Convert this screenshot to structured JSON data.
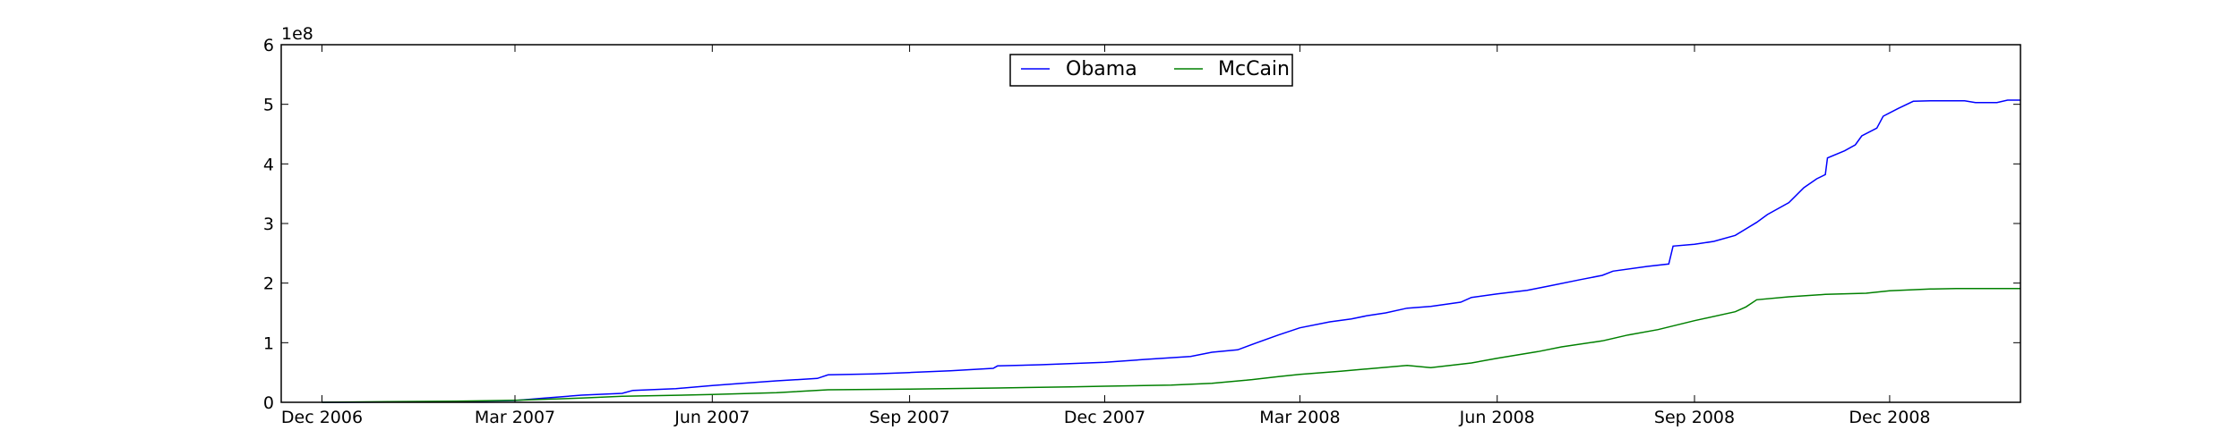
{
  "chart_data": {
    "type": "line",
    "title": "",
    "xlabel": "",
    "ylabel": "",
    "x_type": "date",
    "xlim": [
      "2006-11-12",
      "2009-01-31"
    ],
    "ylim": [
      0,
      600000000
    ],
    "y_offset_label": "1e8",
    "x_ticks": [
      {
        "date": "2006-12-01",
        "label": "Dec 2006"
      },
      {
        "date": "2007-03-01",
        "label": "Mar 2007"
      },
      {
        "date": "2007-06-01",
        "label": "Jun 2007"
      },
      {
        "date": "2007-09-01",
        "label": "Sep 2007"
      },
      {
        "date": "2007-12-01",
        "label": "Dec 2007"
      },
      {
        "date": "2008-03-01",
        "label": "Mar 2008"
      },
      {
        "date": "2008-06-01",
        "label": "Jun 2008"
      },
      {
        "date": "2008-09-01",
        "label": "Sep 2008"
      },
      {
        "date": "2008-12-01",
        "label": "Dec 2008"
      }
    ],
    "y_ticks": [
      {
        "value": 0,
        "label": "0"
      },
      {
        "value": 100000000,
        "label": "1"
      },
      {
        "value": 200000000,
        "label": "2"
      },
      {
        "value": 300000000,
        "label": "3"
      },
      {
        "value": 400000000,
        "label": "4"
      },
      {
        "value": 500000000,
        "label": "5"
      },
      {
        "value": 600000000,
        "label": "6"
      }
    ],
    "grid": false,
    "legend": {
      "placement": "top-center",
      "columns": 2
    },
    "series": [
      {
        "name": "Obama",
        "color": "#0000ff",
        "points": [
          [
            "2006-12-01",
            0
          ],
          [
            "2007-01-01",
            300000
          ],
          [
            "2007-02-01",
            1000000
          ],
          [
            "2007-03-01",
            3000000
          ],
          [
            "2007-03-15",
            7000000
          ],
          [
            "2007-04-01",
            12000000
          ],
          [
            "2007-04-20",
            15000000
          ],
          [
            "2007-04-25",
            20000000
          ],
          [
            "2007-05-15",
            23000000
          ],
          [
            "2007-06-01",
            28000000
          ],
          [
            "2007-06-15",
            32000000
          ],
          [
            "2007-07-01",
            36000000
          ],
          [
            "2007-07-20",
            40000000
          ],
          [
            "2007-07-25",
            46000000
          ],
          [
            "2007-08-15",
            47500000
          ],
          [
            "2007-09-01",
            50000000
          ],
          [
            "2007-09-20",
            53000000
          ],
          [
            "2007-10-10",
            57000000
          ],
          [
            "2007-10-12",
            61000000
          ],
          [
            "2007-11-01",
            63000000
          ],
          [
            "2007-12-01",
            67000000
          ],
          [
            "2007-12-20",
            72000000
          ],
          [
            "2008-01-10",
            77000000
          ],
          [
            "2008-01-20",
            84000000
          ],
          [
            "2008-02-01",
            88000000
          ],
          [
            "2008-02-10",
            100000000
          ],
          [
            "2008-02-20",
            113000000
          ],
          [
            "2008-03-01",
            125000000
          ],
          [
            "2008-03-15",
            135000000
          ],
          [
            "2008-03-25",
            140000000
          ],
          [
            "2008-04-01",
            145000000
          ],
          [
            "2008-04-10",
            150000000
          ],
          [
            "2008-04-20",
            158000000
          ],
          [
            "2008-05-01",
            161000000
          ],
          [
            "2008-05-15",
            168000000
          ],
          [
            "2008-05-20",
            176000000
          ],
          [
            "2008-06-01",
            182000000
          ],
          [
            "2008-06-15",
            188000000
          ],
          [
            "2008-06-25",
            195000000
          ],
          [
            "2008-07-10",
            206000000
          ],
          [
            "2008-07-20",
            213000000
          ],
          [
            "2008-07-25",
            220000000
          ],
          [
            "2008-08-10",
            228000000
          ],
          [
            "2008-08-20",
            232000000
          ],
          [
            "2008-08-22",
            262000000
          ],
          [
            "2008-09-01",
            265000000
          ],
          [
            "2008-09-10",
            270000000
          ],
          [
            "2008-09-20",
            280000000
          ],
          [
            "2008-09-30",
            302000000
          ],
          [
            "2008-10-05",
            315000000
          ],
          [
            "2008-10-15",
            335000000
          ],
          [
            "2008-10-22",
            360000000
          ],
          [
            "2008-10-28",
            375000000
          ],
          [
            "2008-11-01",
            382000000
          ],
          [
            "2008-11-02",
            410000000
          ],
          [
            "2008-11-10",
            422000000
          ],
          [
            "2008-11-15",
            432000000
          ],
          [
            "2008-11-18",
            447000000
          ],
          [
            "2008-11-25",
            460000000
          ],
          [
            "2008-11-28",
            480000000
          ],
          [
            "2008-12-05",
            493000000
          ],
          [
            "2008-12-12",
            505000000
          ],
          [
            "2008-12-20",
            506000000
          ],
          [
            "2009-01-05",
            506000000
          ],
          [
            "2009-01-10",
            503000000
          ],
          [
            "2009-01-20",
            503000000
          ],
          [
            "2009-01-25",
            507000000
          ],
          [
            "2009-01-31",
            507000000
          ]
        ]
      },
      {
        "name": "McCain",
        "color": "#008000",
        "points": [
          [
            "2006-12-01",
            0
          ],
          [
            "2007-01-01",
            1000000
          ],
          [
            "2007-02-01",
            2000000
          ],
          [
            "2007-03-01",
            3500000
          ],
          [
            "2007-04-01",
            7000000
          ],
          [
            "2007-04-20",
            10000000
          ],
          [
            "2007-06-01",
            13000000
          ],
          [
            "2007-07-01",
            16000000
          ],
          [
            "2007-07-25",
            21000000
          ],
          [
            "2007-09-01",
            22000000
          ],
          [
            "2007-10-12",
            24000000
          ],
          [
            "2007-11-15",
            26000000
          ],
          [
            "2007-12-01",
            27000000
          ],
          [
            "2008-01-01",
            29000000
          ],
          [
            "2008-01-20",
            32000000
          ],
          [
            "2008-02-05",
            37000000
          ],
          [
            "2008-02-20",
            43000000
          ],
          [
            "2008-03-01",
            47000000
          ],
          [
            "2008-03-20",
            52000000
          ],
          [
            "2008-04-01",
            56000000
          ],
          [
            "2008-04-20",
            62000000
          ],
          [
            "2008-05-01",
            58000000
          ],
          [
            "2008-05-20",
            66000000
          ],
          [
            "2008-06-01",
            74000000
          ],
          [
            "2008-06-20",
            85000000
          ],
          [
            "2008-07-01",
            93000000
          ],
          [
            "2008-07-20",
            103000000
          ],
          [
            "2008-08-01",
            113000000
          ],
          [
            "2008-08-15",
            122000000
          ],
          [
            "2008-09-01",
            137000000
          ],
          [
            "2008-09-20",
            152000000
          ],
          [
            "2008-09-25",
            160000000
          ],
          [
            "2008-09-30",
            172000000
          ],
          [
            "2008-10-15",
            177000000
          ],
          [
            "2008-11-01",
            181000000
          ],
          [
            "2008-11-20",
            183000000
          ],
          [
            "2008-12-01",
            187000000
          ],
          [
            "2008-12-20",
            190000000
          ],
          [
            "2009-01-01",
            191000000
          ],
          [
            "2009-01-31",
            191000000
          ]
        ]
      }
    ]
  }
}
